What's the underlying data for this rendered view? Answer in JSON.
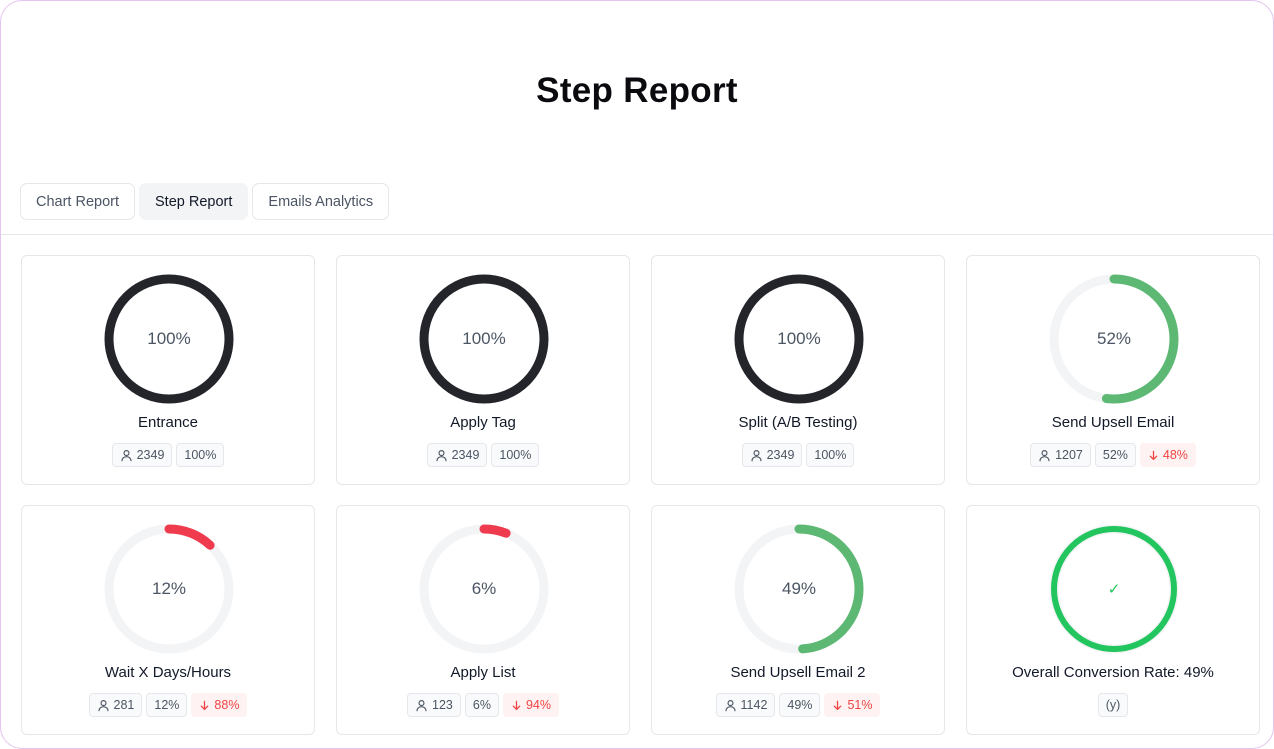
{
  "page": {
    "title": "Step Report"
  },
  "tabs": [
    {
      "label": "Chart Report",
      "active": false
    },
    {
      "label": "Step Report",
      "active": true
    },
    {
      "label": "Emails Analytics",
      "active": false
    }
  ],
  "colors": {
    "full": "#23252b",
    "good": "#5cb873",
    "bad": "#ef3b4e",
    "track": "#f3f4f6",
    "success": "#22c55e"
  },
  "cards": [
    {
      "title": "Entrance",
      "percent_label": "100%",
      "progress": 1.0,
      "tone": "full",
      "users": "2349",
      "rate": "100%",
      "drop": ""
    },
    {
      "title": "Apply Tag",
      "percent_label": "100%",
      "progress": 1.0,
      "tone": "full",
      "users": "2349",
      "rate": "100%",
      "drop": ""
    },
    {
      "title": "Split (A/B Testing)",
      "percent_label": "100%",
      "progress": 1.0,
      "tone": "full",
      "users": "2349",
      "rate": "100%",
      "drop": ""
    },
    {
      "title": "Send Upsell Email",
      "percent_label": "52%",
      "progress": 0.52,
      "tone": "good",
      "users": "1207",
      "rate": "52%",
      "drop": "48%"
    },
    {
      "title": "Wait X Days/Hours",
      "percent_label": "12%",
      "progress": 0.12,
      "tone": "bad",
      "users": "281",
      "rate": "12%",
      "drop": "88%"
    },
    {
      "title": "Apply List",
      "percent_label": "6%",
      "progress": 0.06,
      "tone": "bad",
      "users": "123",
      "rate": "6%",
      "drop": "94%"
    },
    {
      "title": "Send Upsell Email 2",
      "percent_label": "49%",
      "progress": 0.49,
      "tone": "good",
      "users": "1142",
      "rate": "49%",
      "drop": "51%"
    },
    {
      "title": "Overall Conversion Rate: 49%",
      "percent_label": "✓",
      "progress": 1.0,
      "tone": "success",
      "users": "",
      "rate": "",
      "drop": "",
      "note": "(y)"
    }
  ]
}
